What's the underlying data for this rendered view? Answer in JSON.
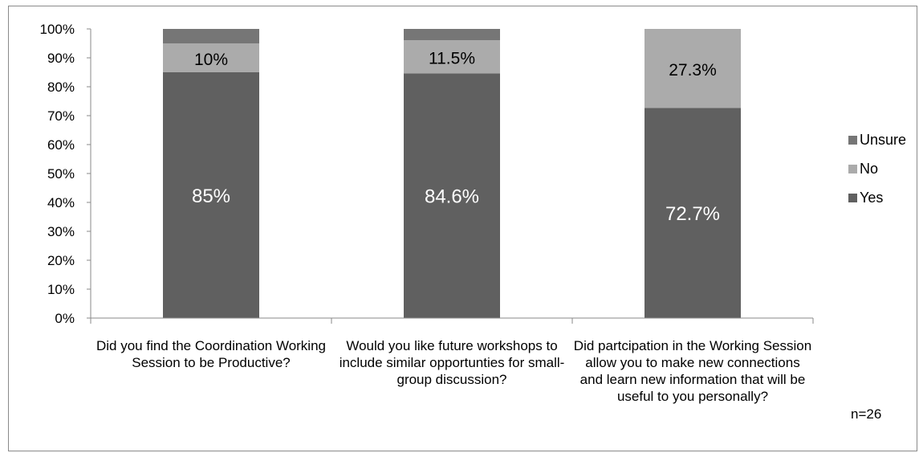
{
  "chart_data": {
    "type": "bar",
    "stacked": true,
    "categories": [
      "Did you find the Coordination Working Session to be Productive?",
      "Would you like future workshops to include similar opportunties for small-group discussion?",
      "Did partcipation in the Working Session allow you to make new connections and learn new information that will be useful to you personally?"
    ],
    "series": [
      {
        "name": "Yes",
        "color": "#606060",
        "values": [
          85,
          84.6,
          72.7
        ],
        "labels": [
          "85%",
          "84.6%",
          "72.7%"
        ]
      },
      {
        "name": "No",
        "color": "#ababab",
        "values": [
          10,
          11.5,
          27.3
        ],
        "labels": [
          "10%",
          "11.5%",
          "27.3%"
        ]
      },
      {
        "name": "Unsure",
        "color": "#767676",
        "values": [
          5,
          3.9,
          0
        ],
        "labels": [
          "",
          "",
          ""
        ]
      }
    ],
    "ylim": [
      0,
      100
    ],
    "yticks": [
      "0%",
      "10%",
      "20%",
      "30%",
      "40%",
      "50%",
      "60%",
      "70%",
      "80%",
      "90%",
      "100%"
    ],
    "grid": false,
    "legend": "right",
    "legend_order": [
      "Unsure",
      "No",
      "Yes"
    ]
  },
  "note": "n=26"
}
